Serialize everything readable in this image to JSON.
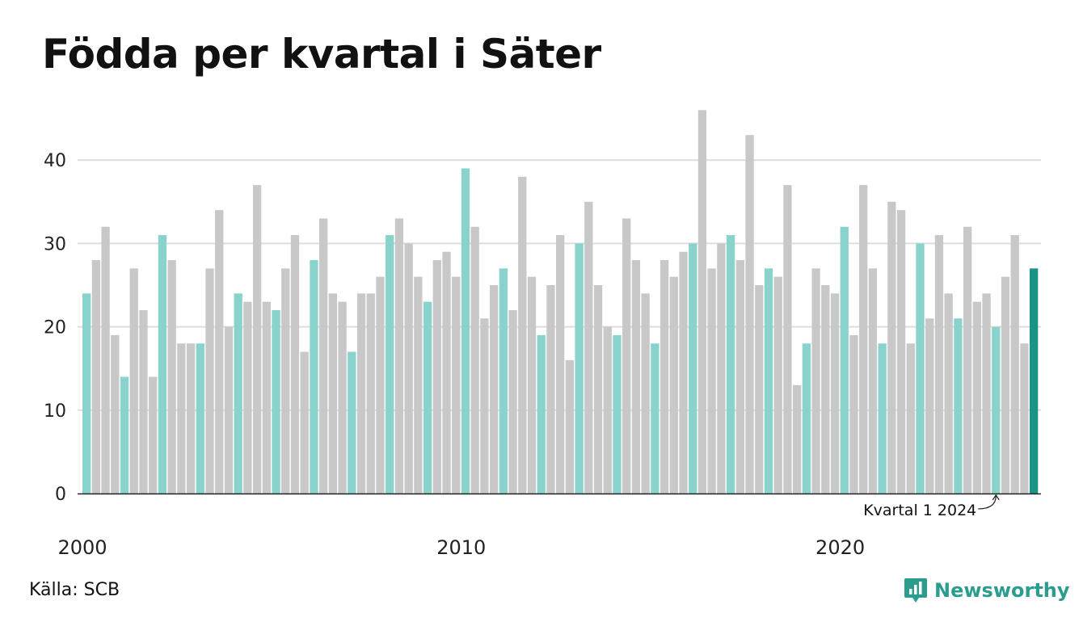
{
  "header": {
    "title": "Födda per kvartal i Säter"
  },
  "footer": {
    "source": "Källa: SCB",
    "brand": "Newsworthy"
  },
  "colors": {
    "q1": "#8ad3cd",
    "other": "#c8c8c8",
    "latest": "#1a9485",
    "grid": "#dddddd",
    "axis": "#222222",
    "brand": "#2a9d8f"
  },
  "chart_data": {
    "type": "bar",
    "title": "Födda per kvartal i Säter",
    "xlabel": "",
    "ylabel": "",
    "ylim": [
      0,
      46
    ],
    "yticks": [
      0,
      10,
      20,
      30,
      40
    ],
    "xticks": [
      "2000",
      "2010",
      "2020"
    ],
    "grid": true,
    "start": {
      "year": 2000,
      "quarter": 1
    },
    "highlight": "Kvartal 1 of each year",
    "annotation": "Kvartal 1 2024",
    "values": [
      24,
      28,
      32,
      19,
      14,
      27,
      22,
      14,
      31,
      28,
      18,
      18,
      18,
      27,
      34,
      20,
      24,
      23,
      37,
      23,
      22,
      27,
      31,
      17,
      28,
      33,
      24,
      23,
      17,
      24,
      24,
      26,
      31,
      33,
      30,
      26,
      23,
      28,
      29,
      26,
      39,
      32,
      21,
      25,
      27,
      22,
      38,
      26,
      19,
      25,
      31,
      16,
      30,
      35,
      25,
      20,
      19,
      33,
      28,
      24,
      18,
      28,
      26,
      29,
      30,
      46,
      27,
      30,
      31,
      28,
      43,
      25,
      27,
      26,
      37,
      13,
      18,
      27,
      25,
      24,
      32,
      19,
      37,
      27,
      18,
      35,
      34,
      18,
      30,
      21,
      31,
      24,
      21,
      32,
      23,
      24,
      20,
      26,
      31,
      18,
      27
    ]
  }
}
